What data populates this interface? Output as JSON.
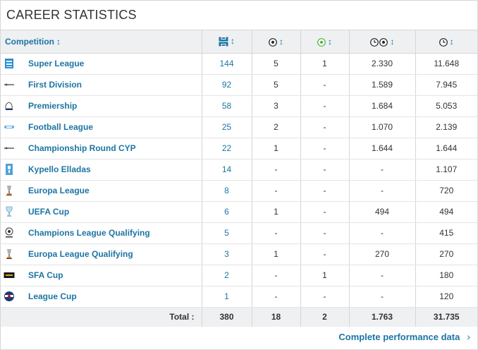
{
  "title": "CAREER STATISTICS",
  "header": {
    "competition_label": "Competition",
    "sort_glyph": "↕",
    "columns": [
      {
        "icon": "appearances-icon"
      },
      {
        "icon": "goals-icon"
      },
      {
        "icon": "own-goals-icon"
      },
      {
        "icon": "minutes-per-goal-icon"
      },
      {
        "icon": "minutes-played-icon"
      }
    ]
  },
  "colors": {
    "link": "#1d75a3",
    "header_bg": "#eef0f2",
    "border": "#d6d6d6"
  },
  "rows": [
    {
      "competition": "Super League",
      "logo": "super-league-logo",
      "apps": "144",
      "goals": "5",
      "own_goals": "1",
      "min_per_goal": "2.330",
      "minutes": "11.648"
    },
    {
      "competition": "First Division",
      "logo": "first-division-logo",
      "apps": "92",
      "goals": "5",
      "own_goals": "-",
      "min_per_goal": "1.589",
      "minutes": "7.945"
    },
    {
      "competition": "Premiership",
      "logo": "premiership-logo",
      "apps": "58",
      "goals": "3",
      "own_goals": "-",
      "min_per_goal": "1.684",
      "minutes": "5.053"
    },
    {
      "competition": "Football League",
      "logo": "football-league-logo",
      "apps": "25",
      "goals": "2",
      "own_goals": "-",
      "min_per_goal": "1.070",
      "minutes": "2.139"
    },
    {
      "competition": "Championship Round CYP",
      "logo": "championship-round-logo",
      "apps": "22",
      "goals": "1",
      "own_goals": "-",
      "min_per_goal": "1.644",
      "minutes": "1.644"
    },
    {
      "competition": "Kypello Elladas",
      "logo": "kypello-elladas-logo",
      "apps": "14",
      "goals": "-",
      "own_goals": "-",
      "min_per_goal": "-",
      "minutes": "1.107"
    },
    {
      "competition": "Europa League",
      "logo": "europa-league-logo",
      "apps": "8",
      "goals": "-",
      "own_goals": "-",
      "min_per_goal": "-",
      "minutes": "720"
    },
    {
      "competition": "UEFA Cup",
      "logo": "uefa-cup-logo",
      "apps": "6",
      "goals": "1",
      "own_goals": "-",
      "min_per_goal": "494",
      "minutes": "494"
    },
    {
      "competition": "Champions League Qualifying",
      "logo": "champions-league-logo",
      "apps": "5",
      "goals": "-",
      "own_goals": "-",
      "min_per_goal": "-",
      "minutes": "415"
    },
    {
      "competition": "Europa League Qualifying",
      "logo": "europa-league-qualifying-logo",
      "apps": "3",
      "goals": "1",
      "own_goals": "-",
      "min_per_goal": "270",
      "minutes": "270"
    },
    {
      "competition": "SFA Cup",
      "logo": "sfa-cup-logo",
      "apps": "2",
      "goals": "-",
      "own_goals": "1",
      "min_per_goal": "-",
      "minutes": "180"
    },
    {
      "competition": "League Cup",
      "logo": "league-cup-logo",
      "apps": "1",
      "goals": "-",
      "own_goals": "-",
      "min_per_goal": "-",
      "minutes": "120"
    }
  ],
  "totals": {
    "label": "Total :",
    "apps": "380",
    "goals": "18",
    "own_goals": "2",
    "min_per_goal": "1.763",
    "minutes": "31.735"
  },
  "footer": {
    "link_label": "Complete performance data",
    "chevron": "›"
  }
}
